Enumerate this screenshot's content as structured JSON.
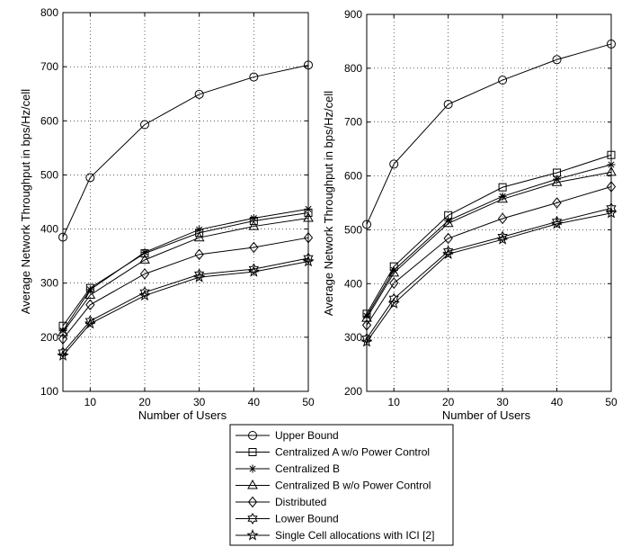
{
  "chart_data": [
    {
      "type": "line",
      "title": "",
      "xlabel": "Number of Users",
      "ylabel": "Average Network Throughput in bps/Hz/cell",
      "xlim": [
        5,
        50
      ],
      "ylim": [
        100,
        800
      ],
      "xticks": [
        10,
        20,
        30,
        40,
        50
      ],
      "yticks": [
        100,
        200,
        300,
        400,
        500,
        600,
        700,
        800
      ],
      "grid": true,
      "x": [
        5,
        10,
        20,
        30,
        40,
        50
      ],
      "series": [
        {
          "name": "Upper Bound",
          "marker": "circle",
          "values": [
            385,
            495,
            593,
            649,
            681,
            703
          ]
        },
        {
          "name": "Centralized A w/o Power Control",
          "marker": "square",
          "values": [
            221,
            291,
            355,
            393,
            415,
            430
          ]
        },
        {
          "name": "Centralized B",
          "marker": "asterisk",
          "values": [
            212,
            288,
            357,
            399,
            420,
            437
          ]
        },
        {
          "name": "Centralized B w/o Power Control",
          "marker": "triangle",
          "values": [
            209,
            278,
            343,
            384,
            405,
            420
          ]
        },
        {
          "name": "Distributed",
          "marker": "diamond",
          "values": [
            197,
            260,
            317,
            353,
            366,
            384
          ]
        },
        {
          "name": "Lower Bound",
          "marker": "hexagram",
          "values": [
            172,
            230,
            283,
            316,
            326,
            346
          ]
        },
        {
          "name": "Single Cell allocations with ICI [2]",
          "marker": "pentagram",
          "values": [
            166,
            225,
            277,
            311,
            321,
            340
          ]
        }
      ]
    },
    {
      "type": "line",
      "title": "",
      "xlabel": "Number of Users",
      "ylabel": "Average Network Throughput in bps/Hz/cell",
      "xlim": [
        5,
        50
      ],
      "ylim": [
        200,
        900
      ],
      "xticks": [
        10,
        20,
        30,
        40,
        50
      ],
      "yticks": [
        200,
        300,
        400,
        500,
        600,
        700,
        800,
        900
      ],
      "grid": true,
      "x": [
        5,
        10,
        20,
        30,
        40,
        50
      ],
      "series": [
        {
          "name": "Upper Bound",
          "marker": "circle",
          "values": [
            510,
            622,
            733,
            778,
            816,
            845
          ]
        },
        {
          "name": "Centralized A w/o Power Control",
          "marker": "square",
          "values": [
            344,
            432,
            527,
            579,
            606,
            639
          ]
        },
        {
          "name": "Centralized B",
          "marker": "asterisk",
          "values": [
            340,
            425,
            517,
            562,
            594,
            621
          ]
        },
        {
          "name": "Centralized B w/o Power Control",
          "marker": "triangle",
          "values": [
            336,
            420,
            512,
            557,
            588,
            607
          ]
        },
        {
          "name": "Distributed",
          "marker": "diamond",
          "values": [
            323,
            401,
            484,
            521,
            550,
            580
          ]
        },
        {
          "name": "Lower Bound",
          "marker": "hexagram",
          "values": [
            298,
            372,
            460,
            487,
            515,
            540
          ]
        },
        {
          "name": "Single Cell allocations with ICI [2]",
          "marker": "pentagram",
          "values": [
            292,
            363,
            455,
            482,
            511,
            531
          ]
        }
      ]
    }
  ],
  "legend": {
    "placement": "bottom-center",
    "entries": [
      "Upper Bound",
      "Centralized A w/o Power Control",
      "Centralized B",
      "Centralized B w/o Power Control",
      "Distributed",
      "Lower Bound",
      "Single Cell allocations with ICI [2]"
    ]
  }
}
